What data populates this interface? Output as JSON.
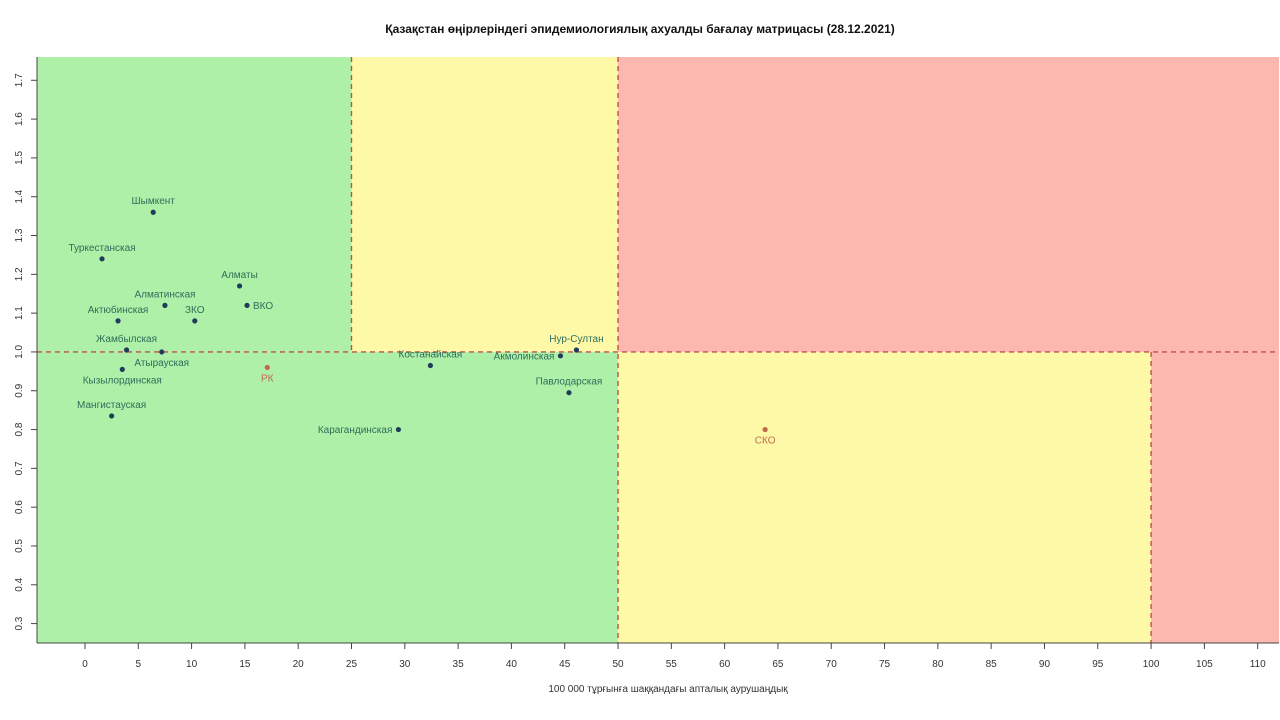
{
  "chart_data": {
    "type": "scatter",
    "title": "Қазақстан өңірлеріндегі эпидемиологиялық ахуалды бағалау матрицасы  (28.12.2021)",
    "xlabel": "100 000 тұрғынға шаққандағы апталық аурушаңдық",
    "ylabel": "",
    "xlim": [
      -4.5,
      112
    ],
    "ylim": [
      0.25,
      1.76
    ],
    "x_ticks": [
      0,
      5,
      10,
      15,
      20,
      25,
      30,
      35,
      40,
      45,
      50,
      55,
      60,
      65,
      70,
      75,
      80,
      85,
      90,
      95,
      100,
      105,
      110
    ],
    "y_ticks": [
      0.3,
      0.4,
      0.5,
      0.6,
      0.7,
      0.8,
      0.9,
      1.0,
      1.1,
      1.2,
      1.3,
      1.4,
      1.5,
      1.6,
      1.7
    ],
    "grid": false,
    "thresholds": {
      "x": [
        25,
        50,
        100
      ],
      "y": 1.0
    },
    "zones": [
      {
        "x0": -4.5,
        "x1": 50,
        "y0": 0.25,
        "y1": 1.0,
        "color": "#aef0a8"
      },
      {
        "x0": -4.5,
        "x1": 25,
        "y0": 1.0,
        "y1": 1.76,
        "color": "#aef0a8"
      },
      {
        "x0": 25,
        "x1": 50,
        "y0": 1.0,
        "y1": 1.76,
        "color": "#fef9a7"
      },
      {
        "x0": 50,
        "x1": 112,
        "y0": 1.0,
        "y1": 1.76,
        "color": "#fcb8ae"
      },
      {
        "x0": 50,
        "x1": 100,
        "y0": 0.25,
        "y1": 1.0,
        "color": "#fef9a7"
      },
      {
        "x0": 100,
        "x1": 112,
        "y0": 0.25,
        "y1": 1.0,
        "color": "#fcb8ae"
      }
    ],
    "line_color": "#c0504d",
    "point_color": "#1f3d5a",
    "label_color": "#2e6e5a",
    "highlight_color": "#c06a4a",
    "points": [
      {
        "label": "Шымкент",
        "x": 6.4,
        "y": 1.36,
        "label_pos": "above"
      },
      {
        "label": "Туркестанская",
        "x": 1.6,
        "y": 1.24,
        "label_pos": "above"
      },
      {
        "label": "Алматы",
        "x": 14.5,
        "y": 1.17,
        "label_pos": "above"
      },
      {
        "label": "Алматинская",
        "x": 7.5,
        "y": 1.12,
        "label_pos": "above"
      },
      {
        "label": "ВКО",
        "x": 15.2,
        "y": 1.12,
        "label_pos": "right"
      },
      {
        "label": "Актюбинская",
        "x": 3.1,
        "y": 1.08,
        "label_pos": "above"
      },
      {
        "label": "ЗКО",
        "x": 10.3,
        "y": 1.08,
        "label_pos": "above"
      },
      {
        "label": "Жамбылская",
        "x": 3.9,
        "y": 1.005,
        "label_pos": "above"
      },
      {
        "label": "Атырауская",
        "x": 7.2,
        "y": 1.0,
        "label_pos": "below"
      },
      {
        "label": "Кызылординская",
        "x": 3.5,
        "y": 0.955,
        "label_pos": "below"
      },
      {
        "label": "РК",
        "x": 17.1,
        "y": 0.96,
        "label_pos": "below",
        "highlight": true
      },
      {
        "label": "Мангистауская",
        "x": 2.5,
        "y": 0.835,
        "label_pos": "above"
      },
      {
        "label": "Костанайская",
        "x": 32.4,
        "y": 0.965,
        "label_pos": "above"
      },
      {
        "label": "Акмолинская",
        "x": 44.6,
        "y": 0.99,
        "label_pos": "left"
      },
      {
        "label": "Нур-Султан",
        "x": 46.1,
        "y": 1.005,
        "label_pos": "above"
      },
      {
        "label": "Павлодарская",
        "x": 45.4,
        "y": 0.895,
        "label_pos": "above"
      },
      {
        "label": "Карагандинская",
        "x": 29.4,
        "y": 0.8,
        "label_pos": "left"
      },
      {
        "label": "СКО",
        "x": 63.8,
        "y": 0.8,
        "label_pos": "below",
        "highlight": true
      }
    ]
  }
}
